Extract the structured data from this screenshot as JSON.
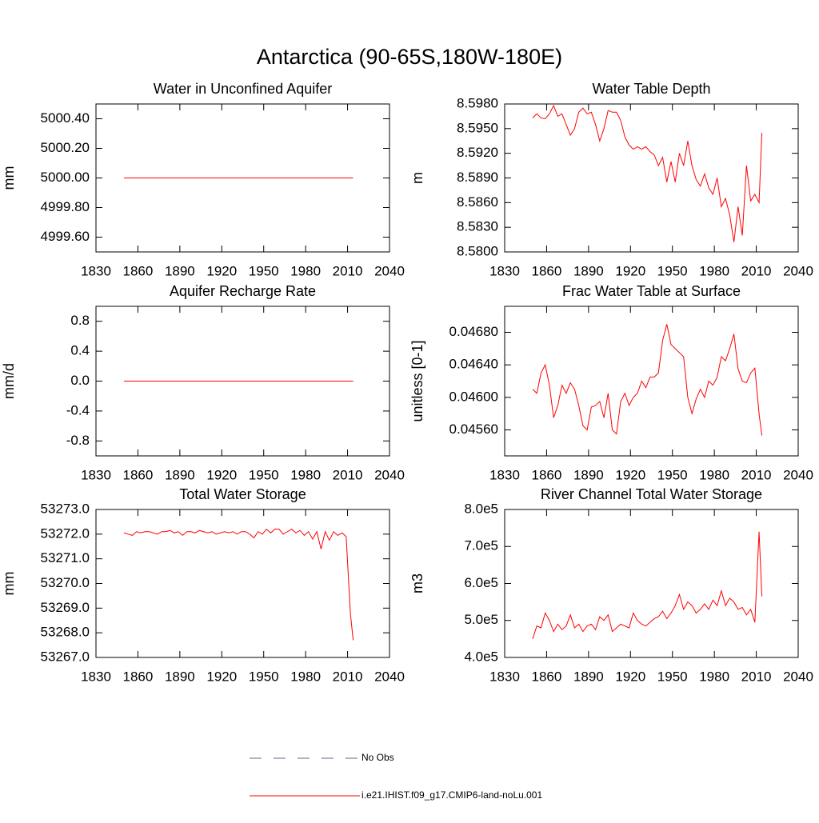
{
  "title": "Antarctica (90-65S,180W-180E)",
  "legend": [
    {
      "name": "No Obs",
      "color": "#5b6b9a",
      "dashed": true
    },
    {
      "name": "i.e21.IHIST.f09_g17.CMIP6-land-noLu.001",
      "color": "#ff0000",
      "dashed": false
    }
  ],
  "chart_data": [
    {
      "type": "line",
      "title": "Water in Unconfined Aquifer",
      "ylabel": "mm",
      "x": [
        1850,
        1853,
        1856,
        1859,
        1862,
        1865,
        1868,
        1871,
        1874,
        1877,
        1880,
        1883,
        1886,
        1889,
        1892,
        1895,
        1898,
        1901,
        1904,
        1907,
        1910,
        1913,
        1916,
        1919,
        1922,
        1925,
        1928,
        1931,
        1934,
        1937,
        1940,
        1943,
        1946,
        1949,
        1952,
        1955,
        1958,
        1961,
        1964,
        1967,
        1970,
        1973,
        1976,
        1979,
        1982,
        1985,
        1988,
        1991,
        1994,
        1997,
        2000,
        2003,
        2006,
        2009,
        2012,
        2014
      ],
      "series": [
        {
          "color": "#ff0000",
          "values": [
            5000.0,
            5000.0,
            5000.0,
            5000.0,
            5000.0,
            5000.0,
            5000.0,
            5000.0,
            5000.0,
            5000.0,
            5000.0,
            5000.0,
            5000.0,
            5000.0,
            5000.0,
            5000.0,
            5000.0,
            5000.0,
            5000.0,
            5000.0,
            5000.0,
            5000.0,
            5000.0,
            5000.0,
            5000.0,
            5000.0,
            5000.0,
            5000.0,
            5000.0,
            5000.0,
            5000.0,
            5000.0,
            5000.0,
            5000.0,
            5000.0,
            5000.0,
            5000.0,
            5000.0,
            5000.0,
            5000.0,
            5000.0,
            5000.0,
            5000.0,
            5000.0,
            5000.0,
            5000.0,
            5000.0,
            5000.0,
            5000.0,
            5000.0,
            5000.0,
            5000.0,
            5000.0,
            5000.0,
            5000.0,
            5000.0
          ]
        }
      ],
      "xlim": [
        1830,
        2040
      ],
      "xticks": [
        1830,
        1860,
        1890,
        1920,
        1950,
        1980,
        2010,
        2040
      ],
      "ylim": [
        4999.5,
        5000.5
      ],
      "yticks": [
        {
          "value": 5000.4,
          "label": "5000.40"
        },
        {
          "value": 5000.2,
          "label": "5000.20"
        },
        {
          "value": 5000.0,
          "label": "5000.00"
        },
        {
          "value": 4999.8,
          "label": "4999.80"
        },
        {
          "value": 4999.6,
          "label": "4999.60"
        }
      ]
    },
    {
      "type": "line",
      "title": "Water Table Depth",
      "ylabel": "m",
      "x": [
        1850,
        1853,
        1856,
        1859,
        1862,
        1865,
        1868,
        1871,
        1874,
        1877,
        1880,
        1883,
        1886,
        1889,
        1892,
        1895,
        1898,
        1901,
        1904,
        1907,
        1910,
        1913,
        1916,
        1919,
        1922,
        1925,
        1928,
        1931,
        1934,
        1937,
        1940,
        1943,
        1946,
        1949,
        1952,
        1955,
        1958,
        1961,
        1964,
        1967,
        1970,
        1973,
        1976,
        1979,
        1982,
        1985,
        1988,
        1991,
        1994,
        1997,
        2000,
        2003,
        2006,
        2009,
        2012,
        2014
      ],
      "series": [
        {
          "color": "#ff0000",
          "values": [
            8.5963,
            8.5968,
            8.5963,
            8.5962,
            8.5968,
            8.5978,
            8.5965,
            8.5968,
            8.5955,
            8.5942,
            8.595,
            8.597,
            8.5975,
            8.5968,
            8.597,
            8.5955,
            8.5935,
            8.595,
            8.5972,
            8.597,
            8.597,
            8.596,
            8.594,
            8.593,
            8.5925,
            8.5928,
            8.5925,
            8.5928,
            8.5922,
            8.5918,
            8.5905,
            8.5915,
            8.5885,
            8.591,
            8.5885,
            8.592,
            8.5905,
            8.5935,
            8.5905,
            8.5888,
            8.588,
            8.5895,
            8.5878,
            8.587,
            8.589,
            8.5855,
            8.5865,
            8.5845,
            8.5812,
            8.5855,
            8.582,
            8.5905,
            8.5862,
            8.587,
            8.586,
            8.5945
          ]
        }
      ],
      "xlim": [
        1830,
        2040
      ],
      "xticks": [
        1830,
        1860,
        1890,
        1920,
        1950,
        1980,
        2010,
        2040
      ],
      "ylim": [
        8.58,
        8.598
      ],
      "yticks": [
        {
          "value": 8.598,
          "label": "8.5980"
        },
        {
          "value": 8.595,
          "label": "8.5950"
        },
        {
          "value": 8.592,
          "label": "8.5920"
        },
        {
          "value": 8.589,
          "label": "8.5890"
        },
        {
          "value": 8.586,
          "label": "8.5860"
        },
        {
          "value": 8.583,
          "label": "8.5830"
        },
        {
          "value": 8.58,
          "label": "8.5800"
        }
      ]
    },
    {
      "type": "line",
      "title": "Aquifer Recharge Rate",
      "ylabel": "mm/d",
      "x": [
        1850,
        1853,
        1856,
        1859,
        1862,
        1865,
        1868,
        1871,
        1874,
        1877,
        1880,
        1883,
        1886,
        1889,
        1892,
        1895,
        1898,
        1901,
        1904,
        1907,
        1910,
        1913,
        1916,
        1919,
        1922,
        1925,
        1928,
        1931,
        1934,
        1937,
        1940,
        1943,
        1946,
        1949,
        1952,
        1955,
        1958,
        1961,
        1964,
        1967,
        1970,
        1973,
        1976,
        1979,
        1982,
        1985,
        1988,
        1991,
        1994,
        1997,
        2000,
        2003,
        2006,
        2009,
        2012,
        2014
      ],
      "series": [
        {
          "color": "#ff0000",
          "values": [
            0,
            0,
            0,
            0,
            0,
            0,
            0,
            0,
            0,
            0,
            0,
            0,
            0,
            0,
            0,
            0,
            0,
            0,
            0,
            0,
            0,
            0,
            0,
            0,
            0,
            0,
            0,
            0,
            0,
            0,
            0,
            0,
            0,
            0,
            0,
            0,
            0,
            0,
            0,
            0,
            0,
            0,
            0,
            0,
            0,
            0,
            0,
            0,
            0,
            0,
            0,
            0,
            0,
            0,
            0,
            0
          ]
        }
      ],
      "xlim": [
        1830,
        2040
      ],
      "xticks": [
        1830,
        1860,
        1890,
        1920,
        1950,
        1980,
        2010,
        2040
      ],
      "ylim": [
        -1,
        1
      ],
      "yticks": [
        0.8,
        0.4,
        {
          "value": 0,
          "label": "0.0"
        },
        -0.4,
        -0.8
      ]
    },
    {
      "type": "line",
      "title": "Frac Water Table at Surface",
      "ylabel": "unitless [0-1]",
      "x": [
        1850,
        1853,
        1856,
        1859,
        1862,
        1865,
        1868,
        1871,
        1874,
        1877,
        1880,
        1883,
        1886,
        1889,
        1892,
        1895,
        1898,
        1901,
        1904,
        1907,
        1910,
        1913,
        1916,
        1919,
        1922,
        1925,
        1928,
        1931,
        1934,
        1937,
        1940,
        1943,
        1946,
        1949,
        1952,
        1955,
        1958,
        1961,
        1964,
        1967,
        1970,
        1973,
        1976,
        1979,
        1982,
        1985,
        1988,
        1991,
        1994,
        1997,
        2000,
        2003,
        2006,
        2009,
        2012,
        2014
      ],
      "series": [
        {
          "color": "#ff0000",
          "values": [
            0.0461,
            0.04605,
            0.0463,
            0.0464,
            0.04615,
            0.04575,
            0.0459,
            0.04615,
            0.04605,
            0.04618,
            0.0461,
            0.0459,
            0.04565,
            0.0456,
            0.04588,
            0.0459,
            0.04595,
            0.04575,
            0.04605,
            0.0456,
            0.04555,
            0.04595,
            0.04605,
            0.0459,
            0.046,
            0.04605,
            0.0462,
            0.04612,
            0.04625,
            0.04625,
            0.0463,
            0.0467,
            0.0469,
            0.04665,
            0.0466,
            0.04655,
            0.0465,
            0.046,
            0.0458,
            0.04598,
            0.0461,
            0.046,
            0.0462,
            0.04615,
            0.04625,
            0.0465,
            0.04645,
            0.0466,
            0.04678,
            0.04635,
            0.0462,
            0.04618,
            0.0463,
            0.04636,
            0.0458,
            0.04553
          ]
        }
      ],
      "xlim": [
        1830,
        2040
      ],
      "xticks": [
        1830,
        1860,
        1890,
        1920,
        1950,
        1980,
        2010,
        2040
      ],
      "ylim": [
        0.04528,
        0.04712
      ],
      "yticks": [
        {
          "value": 0.0468,
          "label": "0.04680"
        },
        {
          "value": 0.0464,
          "label": "0.04640"
        },
        {
          "value": 0.046,
          "label": "0.04600"
        },
        {
          "value": 0.0456,
          "label": "0.04560"
        }
      ]
    },
    {
      "type": "line",
      "title": "Total Water Storage",
      "ylabel": "mm",
      "x": [
        1850,
        1853,
        1856,
        1859,
        1862,
        1865,
        1868,
        1871,
        1874,
        1877,
        1880,
        1883,
        1886,
        1889,
        1892,
        1895,
        1898,
        1901,
        1904,
        1907,
        1910,
        1913,
        1916,
        1919,
        1922,
        1925,
        1928,
        1931,
        1934,
        1937,
        1940,
        1943,
        1946,
        1949,
        1952,
        1955,
        1958,
        1961,
        1964,
        1967,
        1970,
        1973,
        1976,
        1979,
        1982,
        1985,
        1988,
        1991,
        1994,
        1997,
        2000,
        2003,
        2006,
        2009,
        2012,
        2014
      ],
      "series": [
        {
          "color": "#ff0000",
          "values": [
            53272.05,
            53272.0,
            53271.95,
            53272.1,
            53272.05,
            53272.1,
            53272.1,
            53272.05,
            53272.0,
            53272.1,
            53272.1,
            53272.15,
            53272.05,
            53272.1,
            53271.95,
            53272.1,
            53272.1,
            53272.05,
            53272.15,
            53272.1,
            53272.05,
            53272.1,
            53272.0,
            53272.05,
            53272.1,
            53272.05,
            53272.1,
            53272.0,
            53272.1,
            53272.1,
            53272.0,
            53271.85,
            53272.1,
            53272.0,
            53272.2,
            53272.05,
            53272.2,
            53272.2,
            53272.0,
            53272.1,
            53272.2,
            53272.05,
            53272.15,
            53271.95,
            53272.1,
            53271.8,
            53272.1,
            53271.4,
            53272.1,
            53271.75,
            53272.1,
            53271.95,
            53272.05,
            53271.9,
            53268.8,
            53267.7
          ]
        }
      ],
      "xlim": [
        1830,
        2040
      ],
      "xticks": [
        1830,
        1860,
        1890,
        1920,
        1950,
        1980,
        2010,
        2040
      ],
      "ylim": [
        53267,
        53273
      ],
      "yticks": [
        {
          "value": 53273,
          "label": "53273.0"
        },
        {
          "value": 53272,
          "label": "53272.0"
        },
        {
          "value": 53271,
          "label": "53271.0"
        },
        {
          "value": 53270,
          "label": "53270.0"
        },
        {
          "value": 53269,
          "label": "53269.0"
        },
        {
          "value": 53268,
          "label": "53268.0"
        },
        {
          "value": 53267,
          "label": "53267.0"
        }
      ]
    },
    {
      "type": "line",
      "title": "River Channel Total Water Storage",
      "ylabel": "m3",
      "x": [
        1850,
        1853,
        1856,
        1859,
        1862,
        1865,
        1868,
        1871,
        1874,
        1877,
        1880,
        1883,
        1886,
        1889,
        1892,
        1895,
        1898,
        1901,
        1904,
        1907,
        1910,
        1913,
        1916,
        1919,
        1922,
        1925,
        1928,
        1931,
        1934,
        1937,
        1940,
        1943,
        1946,
        1949,
        1952,
        1955,
        1958,
        1961,
        1964,
        1967,
        1970,
        1973,
        1976,
        1979,
        1982,
        1985,
        1988,
        1991,
        1994,
        1997,
        2000,
        2003,
        2006,
        2009,
        2012,
        2014
      ],
      "series": [
        {
          "color": "#ff0000",
          "values": [
            450000,
            485000,
            480000,
            520000,
            500000,
            470000,
            490000,
            475000,
            485000,
            515000,
            480000,
            490000,
            470000,
            485000,
            490000,
            475000,
            510000,
            500000,
            515000,
            470000,
            480000,
            490000,
            485000,
            480000,
            520000,
            500000,
            490000,
            485000,
            495000,
            505000,
            510000,
            525000,
            505000,
            520000,
            540000,
            570000,
            530000,
            550000,
            540000,
            520000,
            530000,
            545000,
            530000,
            555000,
            540000,
            580000,
            540000,
            560000,
            550000,
            530000,
            535000,
            515000,
            530000,
            495000,
            740000,
            565000
          ]
        }
      ],
      "xlim": [
        1830,
        2040
      ],
      "xticks": [
        1830,
        1860,
        1890,
        1920,
        1950,
        1980,
        2010,
        2040
      ],
      "ylim": [
        400000,
        800000
      ],
      "yticks": [
        {
          "value": 800000,
          "label": "8.0e5"
        },
        {
          "value": 700000,
          "label": "7.0e5"
        },
        {
          "value": 600000,
          "label": "6.0e5"
        },
        {
          "value": 500000,
          "label": "5.0e5"
        },
        {
          "value": 400000,
          "label": "4.0e5"
        }
      ]
    }
  ]
}
